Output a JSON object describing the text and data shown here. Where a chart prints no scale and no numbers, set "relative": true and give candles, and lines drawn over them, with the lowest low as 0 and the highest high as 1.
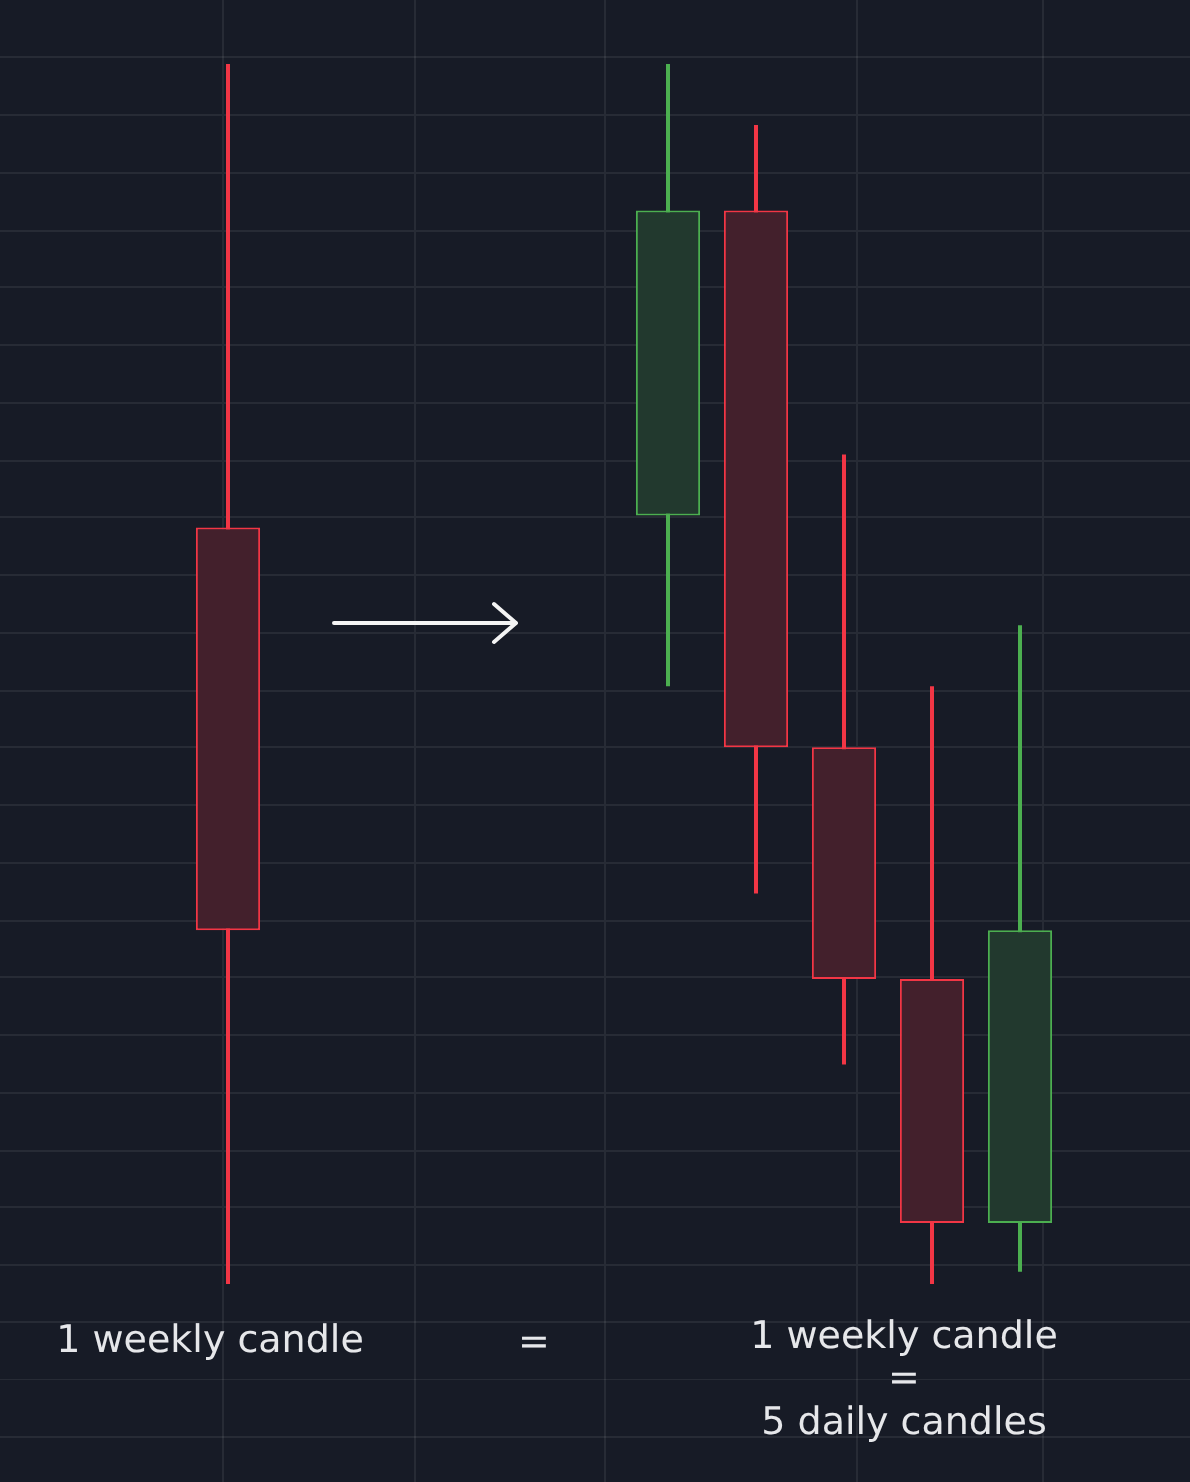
{
  "chart_data": {
    "type": "candlestick",
    "relative": true,
    "categories": [
      null,
      null,
      null,
      null,
      null,
      null,
      null,
      null,
      null,
      null
    ],
    "ohlc": [
      [
        0.62,
        1,
        0,
        0.29
      ],
      null,
      null,
      null,
      null,
      [
        0.63,
        1,
        0.49,
        0.88
      ],
      [
        0.88,
        0.95,
        0.32,
        0.44
      ],
      [
        0.44,
        0.68,
        0.18,
        0.25
      ],
      [
        0.25,
        0.49,
        0,
        0.05
      ],
      [
        0.05,
        0.54,
        0.01,
        0.29
      ]
    ],
    "colors": [
      "#f23645",
      null,
      null,
      null,
      null,
      "#4caf50",
      "#f23645",
      "#f23645",
      "#f23645",
      "#4caf50"
    ],
    "grid": true,
    "tick_labels": false,
    "annotations": [
      "1 weekly candle",
      "=",
      "1 weekly candle",
      "=",
      "5 daily candles"
    ]
  }
}
